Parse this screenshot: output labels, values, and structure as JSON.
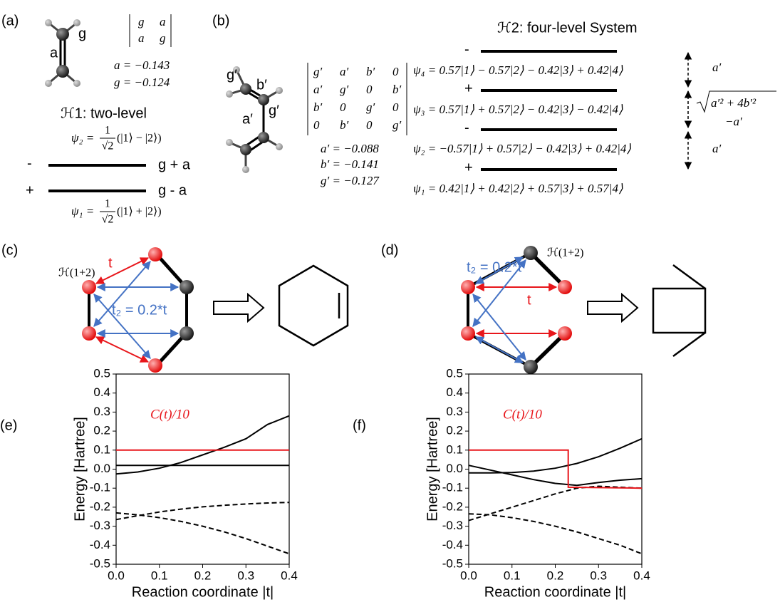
{
  "panel_a": {
    "label": "(a)",
    "bond_labels": [
      "a",
      "g"
    ],
    "matrix": [
      [
        "g",
        "a"
      ],
      [
        "a",
        "g"
      ]
    ],
    "params": [
      "a = −0.143",
      "g = −0.124"
    ],
    "title": "ℋ1: two-level",
    "upper": {
      "sign": "-",
      "energy": "g + a",
      "psi": "ψ₂ =",
      "num": "1",
      "den": "√2",
      "ket": "(|1⟩ − |2⟩)"
    },
    "lower": {
      "sign": "+",
      "energy": "g - a",
      "psi": "ψ₁ =",
      "num": "1",
      "den": "√2",
      "ket": "(|1⟩ + |2⟩)"
    }
  },
  "panel_b": {
    "label": "(b)",
    "atom_labels": [
      "g′",
      "b′",
      "a′",
      "g′"
    ],
    "matrix": [
      [
        "g′",
        "a′",
        "b′",
        "0"
      ],
      [
        "a′",
        "g′",
        "0",
        "b′"
      ],
      [
        "b′",
        "0",
        "g′",
        "0"
      ],
      [
        "0",
        "b′",
        "0",
        "g′"
      ]
    ],
    "params": [
      "a′ = −0.088",
      "b′ = −0.141",
      "g′ = −0.127"
    ],
    "title": "ℋ2: four-level System",
    "levels": [
      {
        "sign": "-",
        "psi": "ψ₄ = 0.57|1⟩ − 0.57|2⟩ − 0.42|3⟩ + 0.42|4⟩"
      },
      {
        "sign": "+",
        "psi": "ψ₃ = 0.57|1⟩ + 0.57|2⟩ − 0.42|3⟩ − 0.42|4⟩"
      },
      {
        "sign": "-",
        "psi": "ψ₂ = −0.57|1⟩ + 0.57|2⟩ − 0.42|3⟩ + 0.42|4⟩"
      },
      {
        "sign": "+",
        "psi": "ψ₁ = 0.42|1⟩ + 0.42|2⟩ + 0.57|3⟩ + 0.57|4⟩"
      }
    ],
    "gaps": {
      "top": "a′",
      "radicand": "a′² + 4b′²",
      "minus": "−a′",
      "bottom": "a′"
    }
  },
  "panel_c": {
    "label": "(c)",
    "hamiltonian": "ℋ(1+2)",
    "t": "t",
    "t2": "t₂ = 0.2*t"
  },
  "panel_d": {
    "label": "(d)",
    "hamiltonian": "ℋ(1+2)",
    "t": "t",
    "t2": "t₂ = 0.2*t"
  },
  "chart_data": [
    {
      "type": "line",
      "label": "(e)",
      "xlabel": "Reaction coordinate |t|",
      "ylabel": "Energy [Hartree]",
      "xlim": [
        0,
        0.4
      ],
      "ylim": [
        -0.5,
        0.5
      ],
      "xticks": [
        {
          "value": 0,
          "label": "0.0"
        },
        0.1,
        0.2,
        0.3,
        0.4
      ],
      "yticks": [
        -0.5,
        -0.4,
        -0.3,
        -0.2,
        -0.1,
        {
          "value": 0,
          "label": "0.0"
        },
        0.1,
        0.2,
        0.3,
        0.4,
        0.5
      ],
      "x": [
        0,
        0.05,
        0.1,
        0.15,
        0.2,
        0.25,
        0.3,
        0.35,
        0.4
      ],
      "series": [
        {
          "color": "#000000",
          "linestyle": "solid",
          "values": [
            0.02,
            0.02,
            0.02,
            0.02,
            0.02,
            0.02,
            0.02,
            0.02,
            0.02
          ]
        },
        {
          "color": "#000000",
          "linestyle": "solid",
          "values": [
            -0.025,
            -0.015,
            0.005,
            0.035,
            0.075,
            0.115,
            0.16,
            0.235,
            0.28
          ]
        },
        {
          "color": "#000000",
          "linestyle": "dashed",
          "values": [
            -0.265,
            -0.245,
            -0.225,
            -0.21,
            -0.198,
            -0.19,
            -0.183,
            -0.178,
            -0.175
          ]
        },
        {
          "color": "#000000",
          "linestyle": "dashed",
          "values": [
            -0.23,
            -0.24,
            -0.255,
            -0.275,
            -0.3,
            -0.33,
            -0.365,
            -0.405,
            -0.445
          ]
        },
        {
          "name": "C(t)/10",
          "color": "#e8161b",
          "linestyle": "solid",
          "values": [
            0.1,
            0.1,
            0.1,
            0.1,
            0.1,
            0.1,
            0.1,
            0.1,
            0.1
          ]
        }
      ]
    },
    {
      "type": "line",
      "label": "(f)",
      "xlabel": "Reaction coordinate |t|",
      "ylabel": "Energy [Hartree]",
      "xlim": [
        0,
        0.4
      ],
      "ylim": [
        -0.5,
        0.5
      ],
      "xticks": [
        {
          "value": 0,
          "label": "0.0"
        },
        0.1,
        0.2,
        0.3,
        0.4
      ],
      "yticks": [
        -0.5,
        -0.4,
        -0.3,
        -0.2,
        -0.1,
        {
          "value": 0,
          "label": "0.0"
        },
        0.1,
        0.2,
        0.3,
        0.4,
        0.5
      ],
      "x": [
        0,
        0.05,
        0.1,
        0.15,
        0.2,
        0.25,
        0.3,
        0.35,
        0.4
      ],
      "series": [
        {
          "color": "#000000",
          "linestyle": "solid",
          "values": [
            -0.02,
            -0.02,
            -0.018,
            -0.01,
            0.005,
            0.03,
            0.065,
            0.11,
            0.16
          ]
        },
        {
          "color": "#000000",
          "linestyle": "solid",
          "values": [
            0.02,
            -0.005,
            -0.03,
            -0.055,
            -0.075,
            -0.085,
            -0.07,
            -0.058,
            -0.05
          ]
        },
        {
          "color": "#000000",
          "linestyle": "dashed",
          "values": [
            -0.27,
            -0.235,
            -0.2,
            -0.165,
            -0.13,
            -0.1,
            -0.09,
            -0.095,
            -0.1
          ]
        },
        {
          "color": "#000000",
          "linestyle": "dashed",
          "values": [
            -0.235,
            -0.24,
            -0.255,
            -0.275,
            -0.3,
            -0.33,
            -0.365,
            -0.4,
            -0.445
          ]
        },
        {
          "name": "C(t)/10",
          "color": "#e8161b",
          "linestyle": "solid",
          "x": [
            0,
            0.23,
            0.23,
            0.4
          ],
          "values": [
            0.1,
            0.1,
            -0.095,
            -0.1
          ]
        }
      ]
    }
  ]
}
